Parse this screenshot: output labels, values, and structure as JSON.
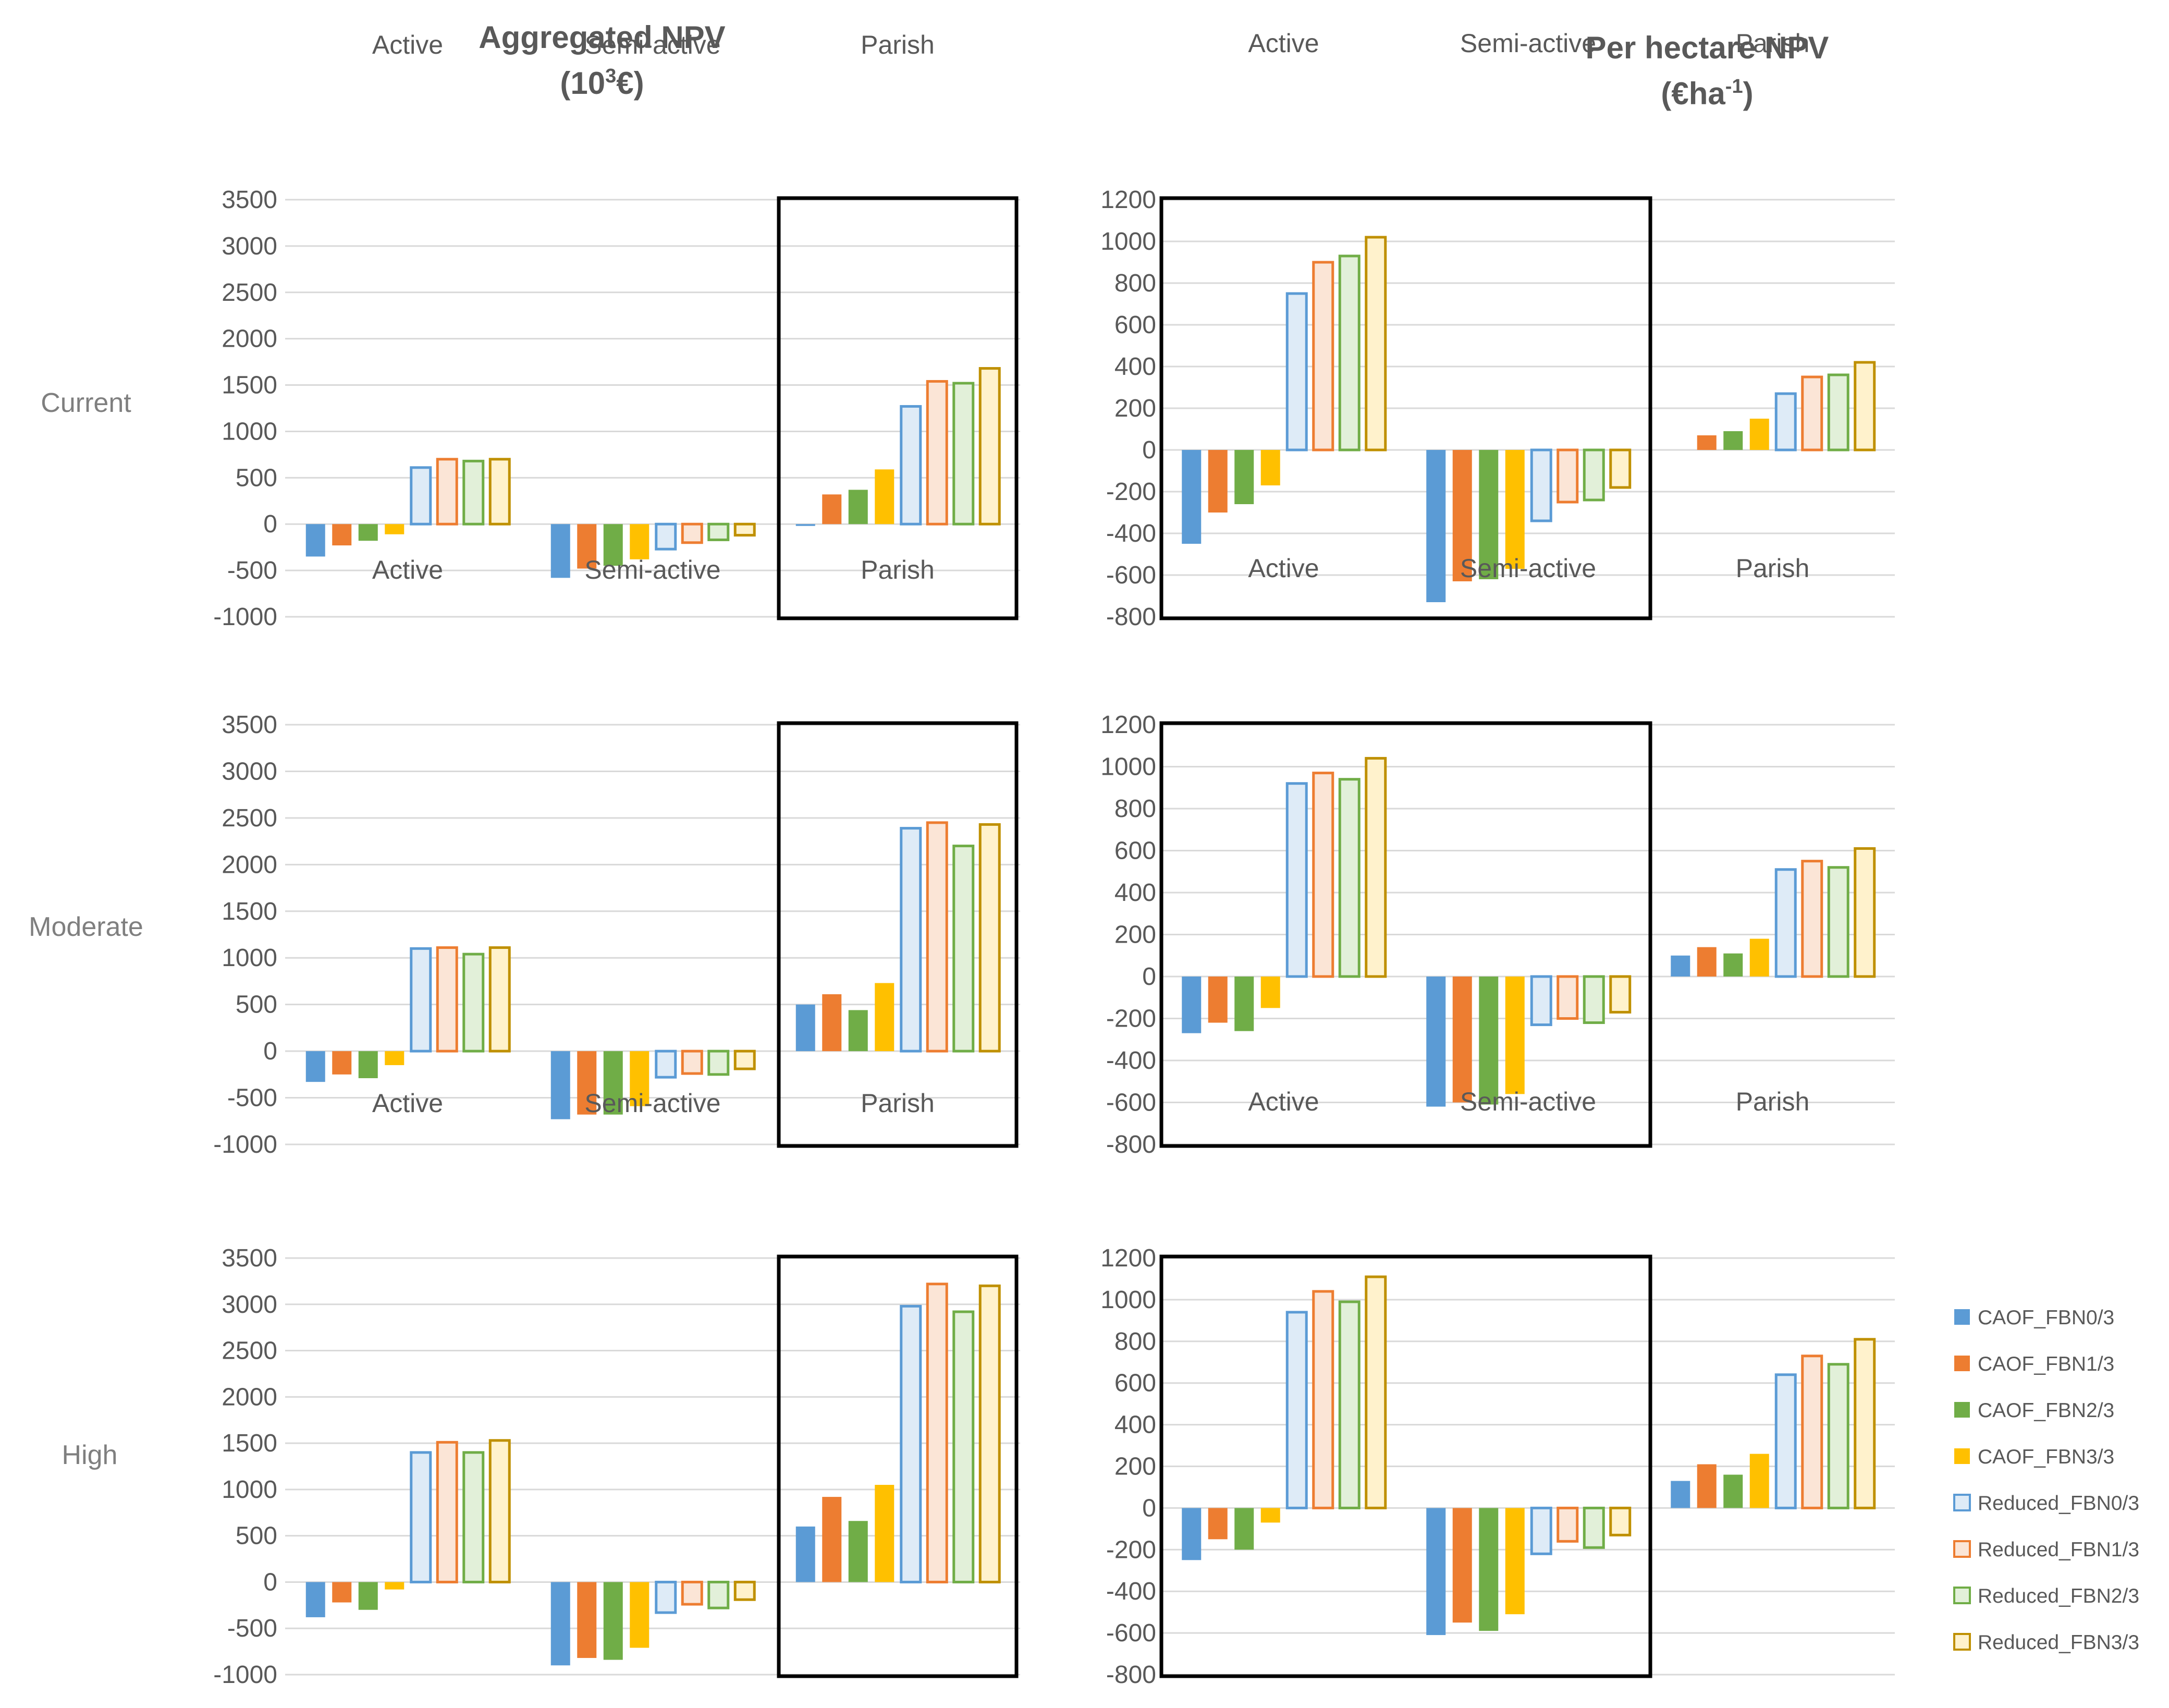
{
  "titles": {
    "aggregated": {
      "line1": "Aggregated NPV",
      "line2_pre": "(10",
      "line2_sup": "3",
      "line2_post": "€)"
    },
    "per_hectare": {
      "line1": "Per hectare NPV",
      "line2_pre": "(€ha",
      "line2_sup": "-1",
      "line2_post": ")"
    }
  },
  "colors": {
    "CAOF_FBN0/3": "#5b9bd5",
    "CAOF_FBN1/3": "#ed7d31",
    "CAOF_FBN2/3": "#70ad47",
    "CAOF_FBN3/3": "#ffc000",
    "Reduced_FBN0/3": "#5b9bd5",
    "Reduced_FBN1/3": "#ed7d31",
    "Reduced_FBN2/3": "#70ad47",
    "Reduced_FBN3/3": "#bf9000",
    "Reduced_fill_FBN0/3": "#deebf7",
    "Reduced_fill_FBN1/3": "#fbe5d6",
    "Reduced_fill_FBN2/3": "#e2f0d9",
    "Reduced_fill_FBN3/3": "#fff2cc",
    "gridline": "#d9d9d9",
    "highlight_box": "#000000"
  },
  "legend": {
    "position": "right",
    "entries": [
      "CAOF_FBN0/3",
      "CAOF_FBN1/3",
      "CAOF_FBN2/3",
      "CAOF_FBN3/3",
      "Reduced_FBN0/3",
      "Reduced_FBN1/3",
      "Reduced_FBN2/3",
      "Reduced_FBN3/3"
    ]
  },
  "scenarios": [
    "Current",
    "Moderate",
    "High"
  ],
  "chart_data": [
    {
      "type": "bar",
      "measure": "Aggregated NPV",
      "scenario": "Current",
      "highlighted_group": "Parish",
      "categories": [
        "Active",
        "Semi-active",
        "Parish"
      ],
      "yticks": [
        "3500",
        "3000",
        "2500",
        "2000",
        "1500",
        "1000",
        "500",
        "0",
        "-500",
        "-1000"
      ],
      "ylim": [
        -1000,
        3500
      ],
      "grid": true,
      "series": [
        {
          "name": "CAOF_FBN0/3",
          "values": [
            -350,
            -580,
            -20
          ]
        },
        {
          "name": "CAOF_FBN1/3",
          "values": [
            -230,
            -480,
            320
          ]
        },
        {
          "name": "CAOF_FBN2/3",
          "values": [
            -180,
            -450,
            370
          ]
        },
        {
          "name": "CAOF_FBN3/3",
          "values": [
            -110,
            -380,
            590
          ]
        },
        {
          "name": "Reduced_FBN0/3",
          "values": [
            610,
            -270,
            1270
          ]
        },
        {
          "name": "Reduced_FBN1/3",
          "values": [
            700,
            -200,
            1540
          ]
        },
        {
          "name": "Reduced_FBN2/3",
          "values": [
            680,
            -170,
            1520
          ]
        },
        {
          "name": "Reduced_FBN3/3",
          "values": [
            700,
            -120,
            1680
          ]
        }
      ]
    },
    {
      "type": "bar",
      "measure": "Per hectare NPV",
      "scenario": "Current",
      "highlighted_group": "Active + Semi-active",
      "categories": [
        "Active",
        "Semi-active",
        "Parish"
      ],
      "yticks": [
        "1200",
        "1000",
        "800",
        "600",
        "400",
        "200",
        "0",
        "-200",
        "-400",
        "-600",
        "-800"
      ],
      "ylim": [
        -800,
        1200
      ],
      "grid": true,
      "series": [
        {
          "name": "CAOF_FBN0/3",
          "values": [
            -450,
            -730,
            0
          ]
        },
        {
          "name": "CAOF_FBN1/3",
          "values": [
            -300,
            -630,
            70
          ]
        },
        {
          "name": "CAOF_FBN2/3",
          "values": [
            -260,
            -620,
            90
          ]
        },
        {
          "name": "CAOF_FBN3/3",
          "values": [
            -170,
            -570,
            150
          ]
        },
        {
          "name": "Reduced_FBN0/3",
          "values": [
            750,
            -340,
            270
          ]
        },
        {
          "name": "Reduced_FBN1/3",
          "values": [
            900,
            -250,
            350
          ]
        },
        {
          "name": "Reduced_FBN2/3",
          "values": [
            930,
            -240,
            360
          ]
        },
        {
          "name": "Reduced_FBN3/3",
          "values": [
            1020,
            -180,
            420
          ]
        }
      ]
    },
    {
      "type": "bar",
      "measure": "Aggregated NPV",
      "scenario": "Moderate",
      "highlighted_group": "Parish",
      "categories": [
        "Active",
        "Semi-active",
        "Parish"
      ],
      "yticks": [
        "3500",
        "3000",
        "2500",
        "2000",
        "1500",
        "1000",
        "500",
        "0",
        "-500",
        "-1000"
      ],
      "ylim": [
        -1000,
        3500
      ],
      "grid": true,
      "series": [
        {
          "name": "CAOF_FBN0/3",
          "values": [
            -330,
            -730,
            500
          ]
        },
        {
          "name": "CAOF_FBN1/3",
          "values": [
            -250,
            -680,
            610
          ]
        },
        {
          "name": "CAOF_FBN2/3",
          "values": [
            -290,
            -680,
            440
          ]
        },
        {
          "name": "CAOF_FBN3/3",
          "values": [
            -150,
            -590,
            730
          ]
        },
        {
          "name": "Reduced_FBN0/3",
          "values": [
            1100,
            -280,
            2390
          ]
        },
        {
          "name": "Reduced_FBN1/3",
          "values": [
            1110,
            -240,
            2450
          ]
        },
        {
          "name": "Reduced_FBN2/3",
          "values": [
            1040,
            -250,
            2200
          ]
        },
        {
          "name": "Reduced_FBN3/3",
          "values": [
            1110,
            -190,
            2430
          ]
        }
      ]
    },
    {
      "type": "bar",
      "measure": "Per hectare NPV",
      "scenario": "Moderate",
      "highlighted_group": "Active + Semi-active",
      "categories": [
        "Active",
        "Semi-active",
        "Parish"
      ],
      "yticks": [
        "1200",
        "1000",
        "800",
        "600",
        "400",
        "200",
        "0",
        "-200",
        "-400",
        "-600",
        "-800"
      ],
      "ylim": [
        -800,
        1200
      ],
      "grid": true,
      "series": [
        {
          "name": "CAOF_FBN0/3",
          "values": [
            -270,
            -620,
            100
          ]
        },
        {
          "name": "CAOF_FBN1/3",
          "values": [
            -220,
            -600,
            140
          ]
        },
        {
          "name": "CAOF_FBN2/3",
          "values": [
            -260,
            -610,
            110
          ]
        },
        {
          "name": "CAOF_FBN3/3",
          "values": [
            -150,
            -560,
            180
          ]
        },
        {
          "name": "Reduced_FBN0/3",
          "values": [
            920,
            -230,
            510
          ]
        },
        {
          "name": "Reduced_FBN1/3",
          "values": [
            970,
            -200,
            550
          ]
        },
        {
          "name": "Reduced_FBN2/3",
          "values": [
            940,
            -220,
            520
          ]
        },
        {
          "name": "Reduced_FBN3/3",
          "values": [
            1040,
            -170,
            610
          ]
        }
      ]
    },
    {
      "type": "bar",
      "measure": "Aggregated NPV",
      "scenario": "High",
      "highlighted_group": "Parish",
      "categories": [
        "Active",
        "Semi-active",
        "Parish"
      ],
      "yticks": [
        "3500",
        "3000",
        "2500",
        "2000",
        "1500",
        "1000",
        "500",
        "0",
        "-500",
        "-1000"
      ],
      "ylim": [
        -1000,
        3500
      ],
      "grid": true,
      "series": [
        {
          "name": "CAOF_FBN0/3",
          "values": [
            -380,
            -900,
            600
          ]
        },
        {
          "name": "CAOF_FBN1/3",
          "values": [
            -220,
            -820,
            920
          ]
        },
        {
          "name": "CAOF_FBN2/3",
          "values": [
            -300,
            -840,
            660
          ]
        },
        {
          "name": "CAOF_FBN3/3",
          "values": [
            -80,
            -710,
            1050
          ]
        },
        {
          "name": "Reduced_FBN0/3",
          "values": [
            1400,
            -330,
            2980
          ]
        },
        {
          "name": "Reduced_FBN1/3",
          "values": [
            1510,
            -240,
            3220
          ]
        },
        {
          "name": "Reduced_FBN2/3",
          "values": [
            1400,
            -280,
            2920
          ]
        },
        {
          "name": "Reduced_FBN3/3",
          "values": [
            1530,
            -190,
            3200
          ]
        }
      ]
    },
    {
      "type": "bar",
      "measure": "Per hectare NPV",
      "scenario": "High",
      "highlighted_group": "Active + Semi-active",
      "categories": [
        "Active",
        "Semi-active",
        "Parish"
      ],
      "yticks": [
        "1200",
        "1000",
        "800",
        "600",
        "400",
        "200",
        "0",
        "-200",
        "-400",
        "-600",
        "-800"
      ],
      "ylim": [
        -800,
        1200
      ],
      "grid": true,
      "series": [
        {
          "name": "CAOF_FBN0/3",
          "values": [
            -250,
            -610,
            130
          ]
        },
        {
          "name": "CAOF_FBN1/3",
          "values": [
            -150,
            -550,
            210
          ]
        },
        {
          "name": "CAOF_FBN2/3",
          "values": [
            -200,
            -590,
            160
          ]
        },
        {
          "name": "CAOF_FBN3/3",
          "values": [
            -70,
            -510,
            260
          ]
        },
        {
          "name": "Reduced_FBN0/3",
          "values": [
            940,
            -220,
            640
          ]
        },
        {
          "name": "Reduced_FBN1/3",
          "values": [
            1040,
            -160,
            730
          ]
        },
        {
          "name": "Reduced_FBN2/3",
          "values": [
            990,
            -190,
            690
          ]
        },
        {
          "name": "Reduced_FBN3/3",
          "values": [
            1110,
            -130,
            810
          ]
        }
      ]
    }
  ]
}
